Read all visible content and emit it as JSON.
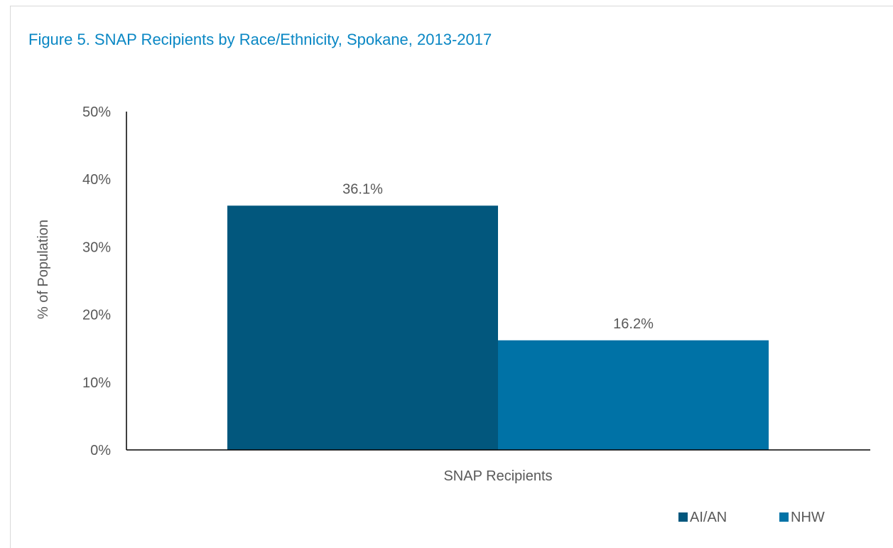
{
  "chart_data": {
    "type": "bar",
    "title": "Figure 5. SNAP Recipients by Race/Ethnicity, Spokane, 2013-2017",
    "categories": [
      "SNAP Recipients"
    ],
    "series": [
      {
        "name": "AI/AN",
        "values": [
          36.1
        ],
        "color": "#02577d",
        "label": "36.1%"
      },
      {
        "name": "NHW",
        "values": [
          16.2
        ],
        "color": "#0072a6",
        "label": "16.2%"
      }
    ],
    "xlabel": "",
    "ylabel": "% of Population",
    "ylim": [
      0,
      50
    ],
    "yticks": [
      0,
      10,
      20,
      30,
      40,
      50
    ],
    "ytick_labels": [
      "0%",
      "10%",
      "20%",
      "30%",
      "40%",
      "50%"
    ],
    "grid": false,
    "legend_position": "bottom-right"
  },
  "colors": {
    "title": "#0a87c4",
    "text": "#595959",
    "axis": "#000000"
  }
}
